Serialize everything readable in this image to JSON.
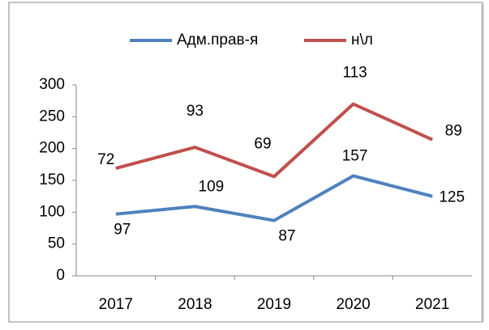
{
  "chart_data": {
    "type": "line",
    "stacked": true,
    "categories": [
      "2017",
      "2018",
      "2019",
      "2020",
      "2021"
    ],
    "series": [
      {
        "name": "Адм.прав-я",
        "color": "#4f81bd",
        "values": [
          97,
          109,
          87,
          157,
          125
        ]
      },
      {
        "name": "н\\л",
        "color": "#c0504d",
        "values": [
          72,
          93,
          69,
          113,
          89
        ]
      }
    ],
    "ylim": [
      0,
      300
    ],
    "yticks": [
      0,
      50,
      100,
      150,
      200,
      250,
      300
    ],
    "legend": "top"
  }
}
